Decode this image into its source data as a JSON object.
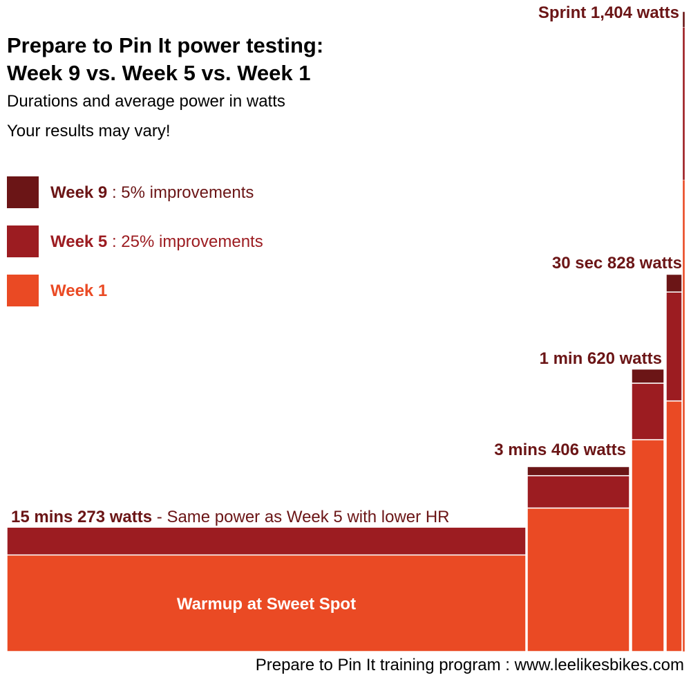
{
  "title_line1": "Prepare to Pin It power testing:",
  "title_line2": "Week 9 vs. Week 5 vs. Week 1",
  "subtitle": "Durations and average power in watts",
  "note": "Your results may vary!",
  "footer": "Prepare to Pin It training program : www.leelikesbikes.com",
  "legend": [
    {
      "name": "Week 9",
      "suffix": " : 5% improvements",
      "color": "#6b1516"
    },
    {
      "name": "Week 5",
      "suffix": " : 25% improvements",
      "color": "#9c1c21"
    },
    {
      "name": "Week 1",
      "suffix": "",
      "color": "#ea4a24"
    }
  ],
  "chart_data": {
    "type": "bar",
    "title": "Prepare to Pin It power testing: Week 9 vs. Week 5 vs. Week 1",
    "subtitle": "Durations and average power in watts",
    "xlabel": "",
    "ylabel": "",
    "ylim": [
      0,
      1404
    ],
    "categories": [
      "15 mins",
      "3 mins",
      "1 min",
      "30 sec",
      "Sprint"
    ],
    "series": [
      {
        "name": "Week 1",
        "color": "#ea4a24",
        "values": [
          212,
          315,
          465,
          550,
          1035
        ]
      },
      {
        "name": "Week 5",
        "color": "#9c1c21",
        "values": [
          273,
          386,
          589,
          789,
          1370
        ]
      },
      {
        "name": "Week 9",
        "color": "#6b1516",
        "values": [
          273,
          406,
          620,
          828,
          1404
        ]
      }
    ],
    "bar_labels": [
      {
        "bold": "15 mins 273 watts",
        "rest": " - Same power as Week 5 with lower HR"
      },
      {
        "bold": "3 mins 406 watts",
        "rest": ""
      },
      {
        "bold": "1 min 620 watts",
        "rest": ""
      },
      {
        "bold": "30 sec 828 watts",
        "rest": ""
      },
      {
        "bold": "Sprint 1,404 watts",
        "rest": ""
      }
    ],
    "inner_label": "Warmup at Sweet Spot",
    "grid": false,
    "legend_position": "top-left"
  }
}
